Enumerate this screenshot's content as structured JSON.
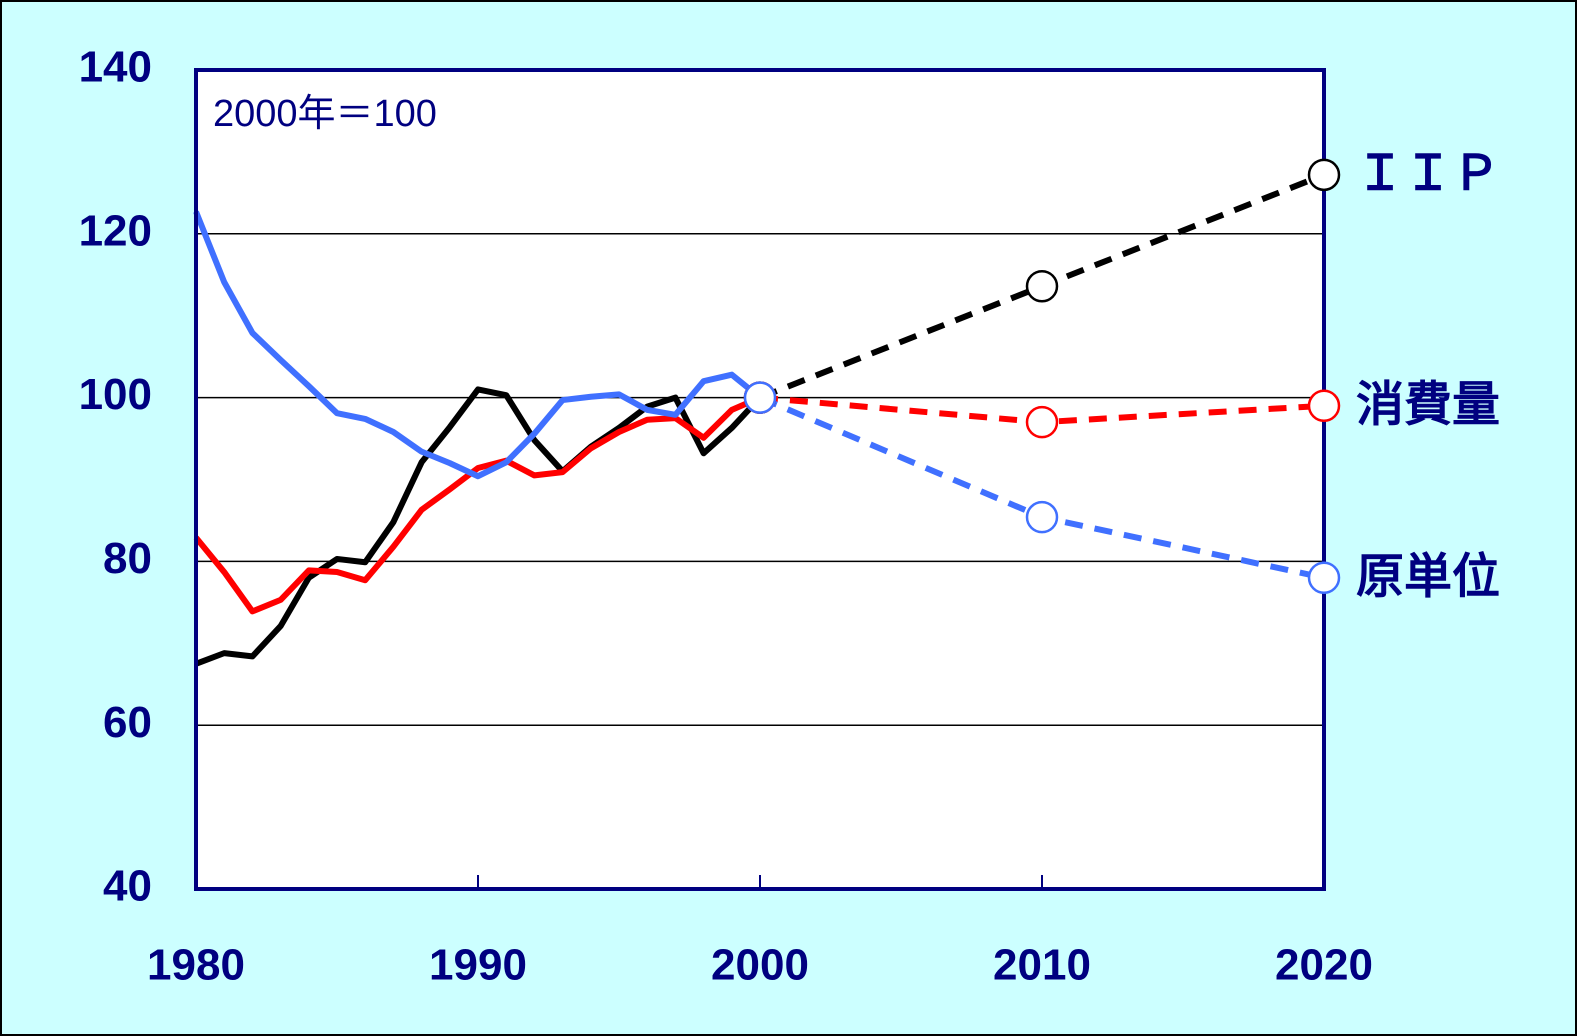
{
  "chart_data": {
    "type": "line",
    "annotation": "2000年＝100",
    "x": [
      1980,
      1981,
      1982,
      1983,
      1984,
      1985,
      1986,
      1987,
      1988,
      1989,
      1990,
      1991,
      1992,
      1993,
      1994,
      1995,
      1996,
      1997,
      1998,
      1999,
      2000
    ],
    "series": [
      {
        "name": "ＩＩＰ",
        "color": "#000000",
        "values": [
          67.5,
          68.8,
          68.4,
          72.1,
          78.0,
          80.3,
          79.9,
          84.8,
          92.1,
          96.4,
          101.0,
          100.3,
          94.8,
          91.0,
          94.0,
          96.3,
          98.9,
          100.0,
          93.2,
          96.3,
          100
        ],
        "projection": {
          "x": [
            2000,
            2010,
            2020
          ],
          "values": [
            100,
            113.6,
            127.2
          ]
        }
      },
      {
        "name": "消費量",
        "color": "#ff0000",
        "values": [
          82.9,
          78.7,
          73.9,
          75.3,
          78.9,
          78.7,
          77.7,
          81.8,
          86.3,
          88.8,
          91.4,
          92.3,
          90.5,
          90.9,
          93.8,
          95.8,
          97.3,
          97.5,
          95.1,
          98.5,
          100
        ],
        "projection": {
          "x": [
            2000,
            2010,
            2020
          ],
          "values": [
            100,
            97.0,
            99.0
          ]
        }
      },
      {
        "name": "原単位",
        "color": "#4070ff",
        "values": [
          122.7,
          114.1,
          107.9,
          104.6,
          101.4,
          98.1,
          97.4,
          95.8,
          93.4,
          92.0,
          90.4,
          92.1,
          95.6,
          99.7,
          100.1,
          100.4,
          98.5,
          97.9,
          102.0,
          102.8,
          100
        ],
        "projection": {
          "x": [
            2000,
            2010,
            2020
          ],
          "values": [
            100,
            85.4,
            78.0
          ]
        }
      }
    ],
    "xlim": [
      1980,
      2020
    ],
    "xticks": [
      1980,
      1990,
      2000,
      2010,
      2020
    ],
    "ylim": [
      40,
      140
    ],
    "yticks": [
      40,
      60,
      80,
      100,
      120,
      140
    ],
    "grid": true
  }
}
